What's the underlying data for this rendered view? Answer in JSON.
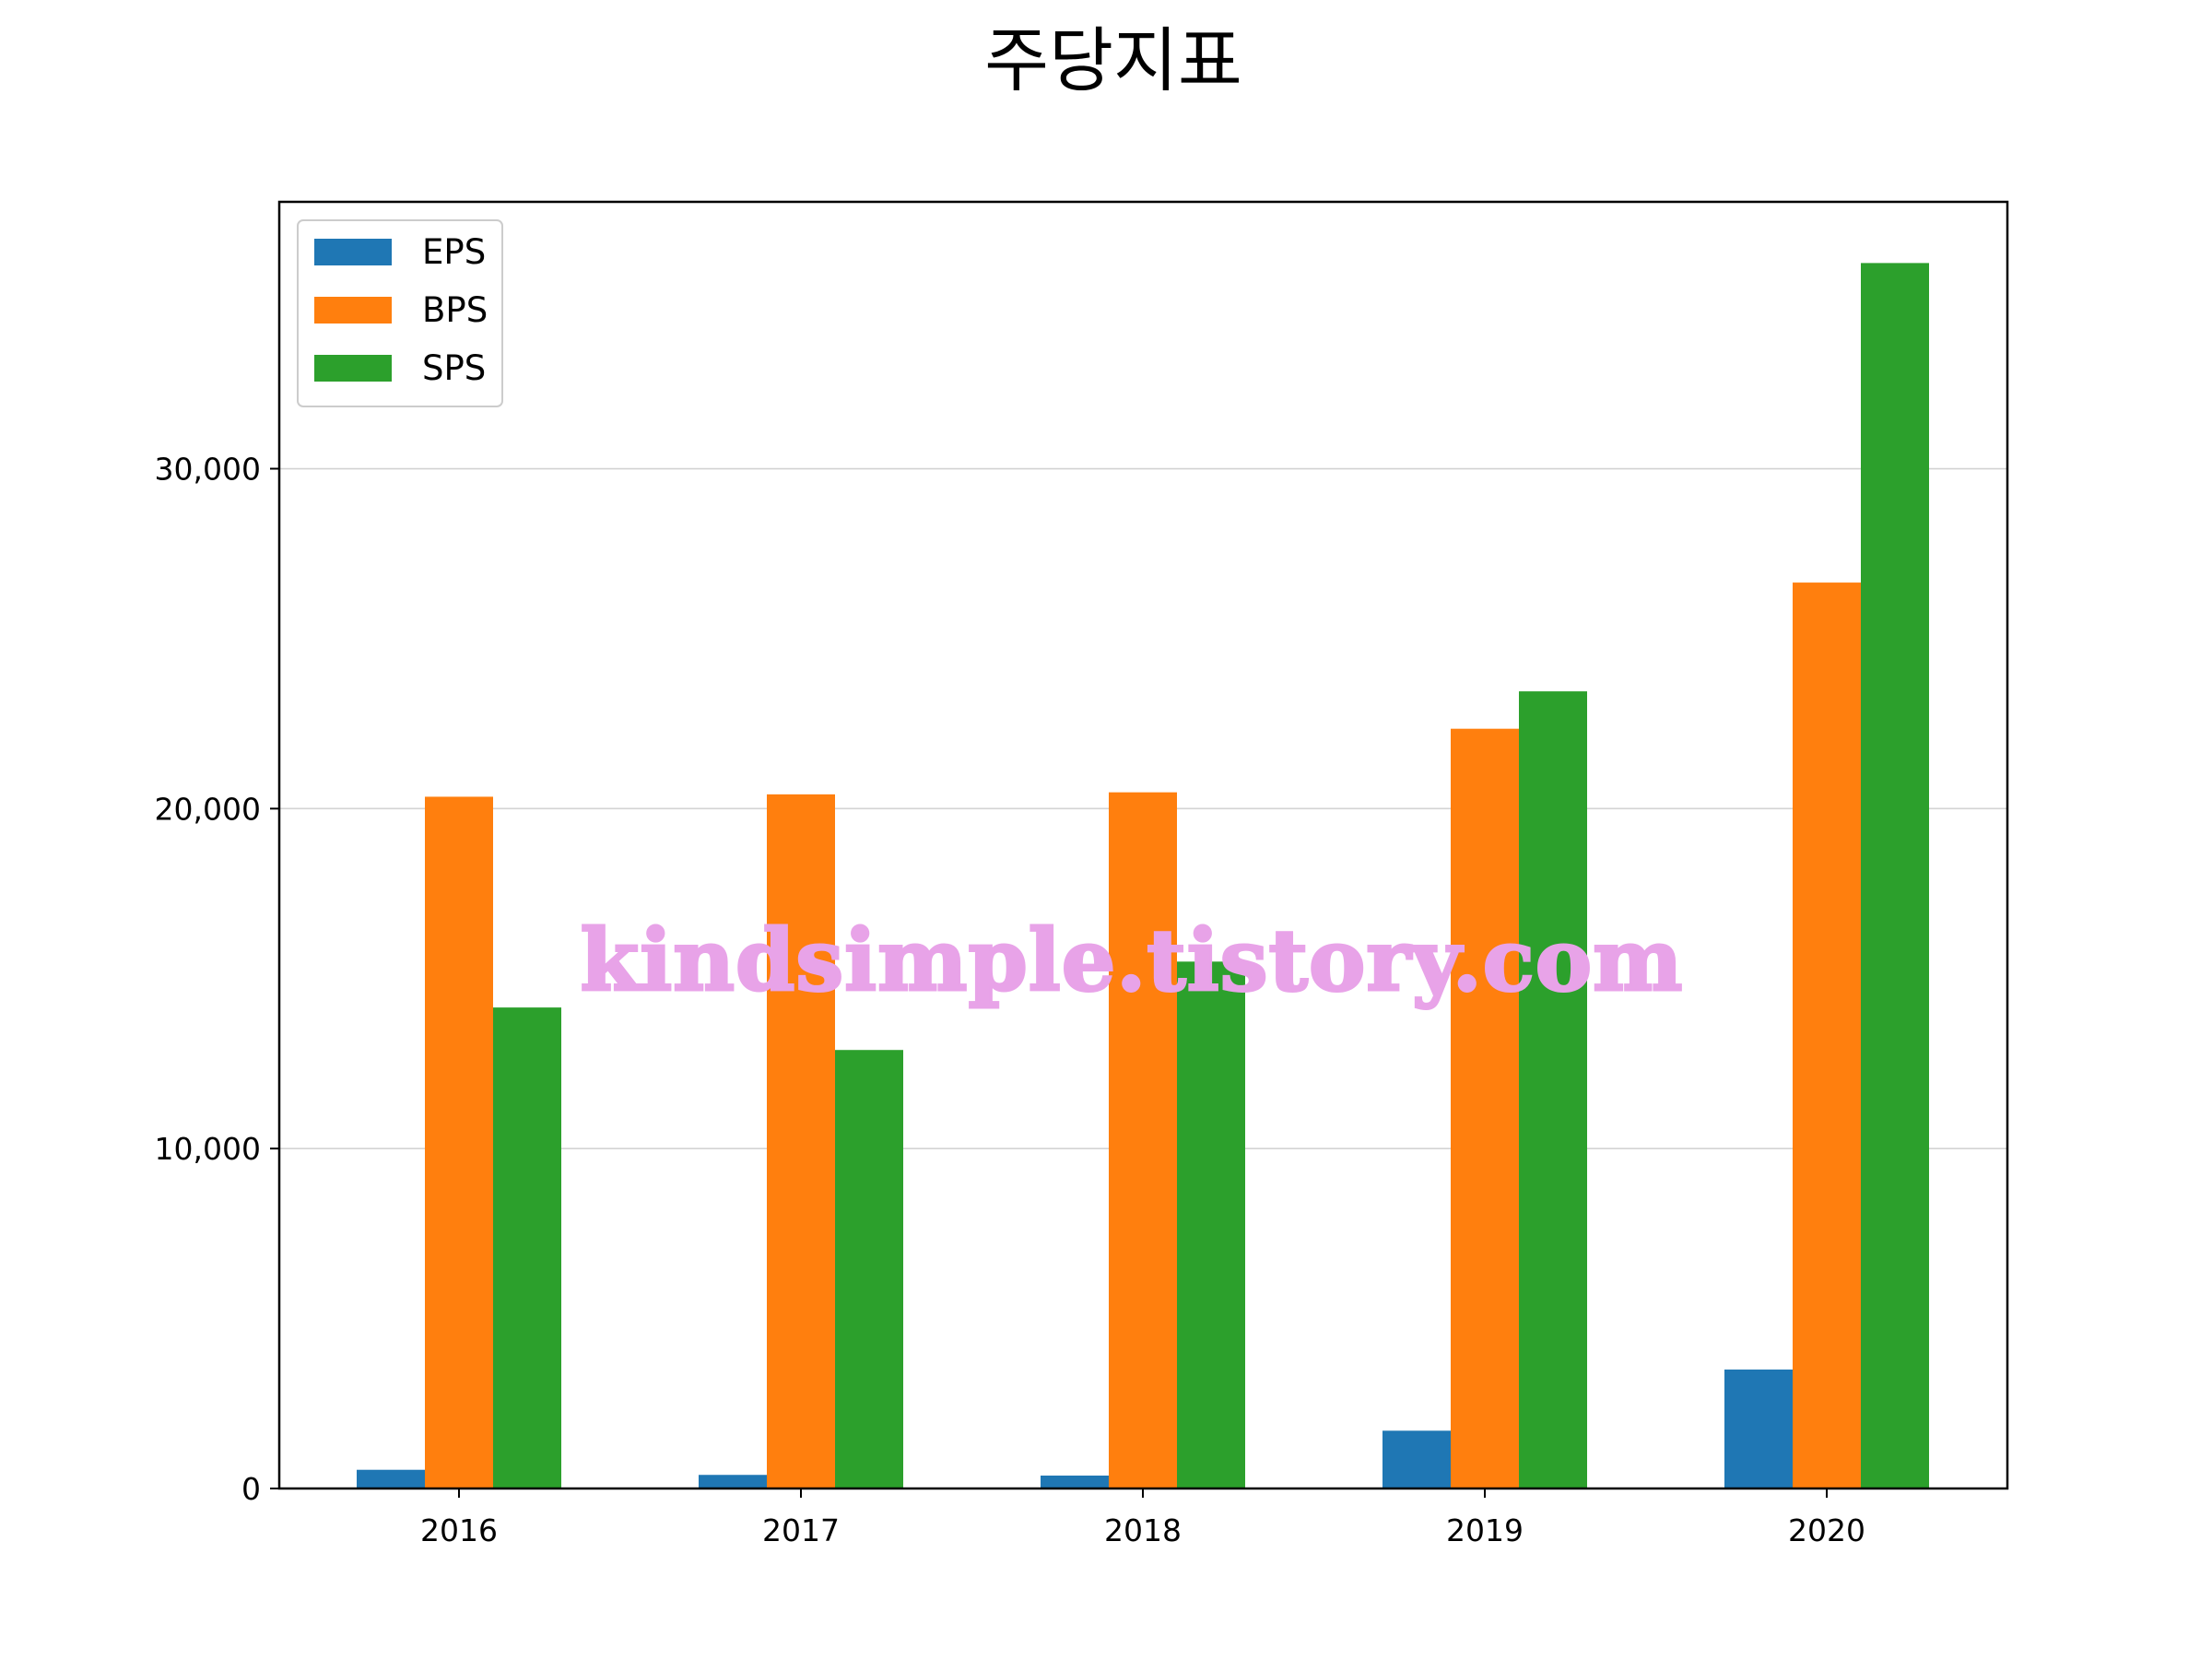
{
  "chart_data": {
    "type": "bar",
    "title": "주당지표",
    "xlabel": "",
    "ylabel": "",
    "categories": [
      "2016",
      "2017",
      "2018",
      "2019",
      "2020"
    ],
    "series": [
      {
        "name": "EPS",
        "color": "#1f77b4",
        "values": [
          550,
          400,
          380,
          1700,
          3500
        ]
      },
      {
        "name": "BPS",
        "color": "#ff7f0e",
        "values": [
          20350,
          20420,
          20480,
          22350,
          26650
        ]
      },
      {
        "name": "SPS",
        "color": "#2ca02c",
        "values": [
          14150,
          12900,
          15500,
          23450,
          36050
        ]
      }
    ],
    "ylim": [
      0,
      37850
    ],
    "yticks": [
      0,
      10000,
      20000,
      30000
    ],
    "ytick_labels": [
      "0",
      "10,000",
      "20,000",
      "30,000"
    ],
    "grid": "y",
    "legend_position": "top-left",
    "watermark": "kindsimple.tistory.com"
  }
}
